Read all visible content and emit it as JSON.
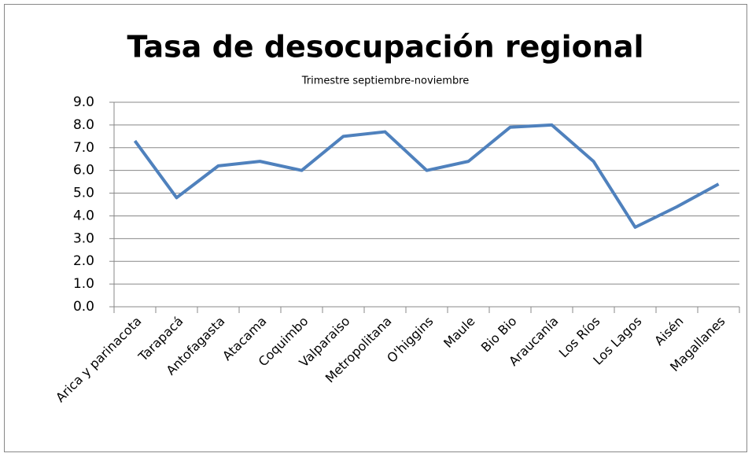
{
  "chart_data": {
    "type": "line",
    "title": "Tasa de desocupación regional",
    "subtitle": "Trimestre septiembre-noviembre",
    "categories": [
      "Arica y parinacota",
      "Tarapacá",
      "Antofagasta",
      "Atacama",
      "Coquimbo",
      "Valparaiso",
      "Metropolitana",
      "O'higgins",
      "Maule",
      "Bio Bio",
      "Araucanía",
      "Los Ríos",
      "Los Lagos",
      "Aisén",
      "Magallanes"
    ],
    "values": [
      7.3,
      4.8,
      6.2,
      6.4,
      6.0,
      7.5,
      7.7,
      6.0,
      6.4,
      7.9,
      8.0,
      6.4,
      3.5,
      4.4,
      5.4
    ],
    "color": "#4f81bd",
    "ylim": [
      0,
      9
    ],
    "yticks": [
      {
        "value": 0,
        "label": "0.0"
      },
      {
        "value": 1,
        "label": "1.0"
      },
      {
        "value": 2,
        "label": "2.0"
      },
      {
        "value": 3,
        "label": "3.0"
      },
      {
        "value": 4,
        "label": "4.0"
      },
      {
        "value": 5,
        "label": "5.0"
      },
      {
        "value": 6,
        "label": "6.0"
      },
      {
        "value": 7,
        "label": "7.0"
      },
      {
        "value": 8,
        "label": "8.0"
      },
      {
        "value": 9,
        "label": "9.0"
      }
    ],
    "grid": true
  }
}
